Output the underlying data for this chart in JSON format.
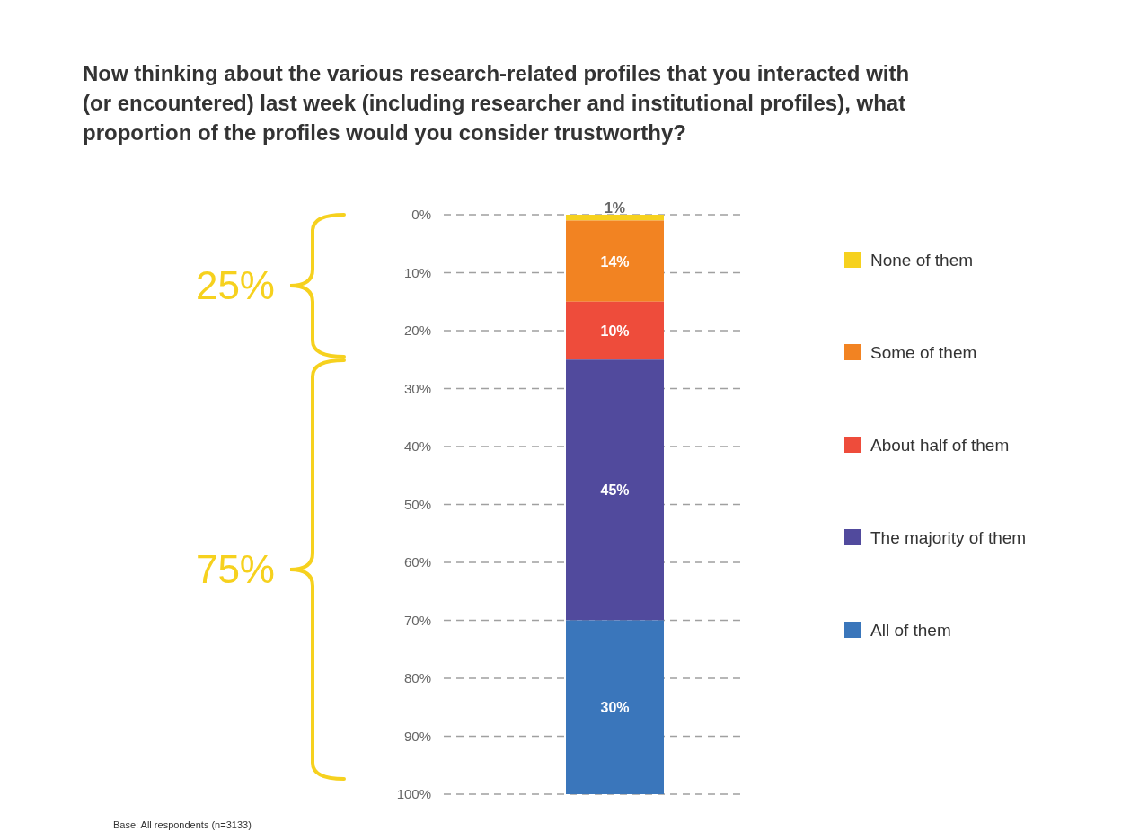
{
  "chart_data": {
    "type": "bar",
    "title": "Now thinking about the various research-related profiles that you interacted with (or encountered) last week (including researcher and institutional profiles), what proportion of the profiles would you consider trustworthy?",
    "categories": [
      null
    ],
    "stacked": true,
    "series": [
      {
        "name": "None of them",
        "color": "#f6d11e",
        "values": [
          1
        ],
        "value_labels": [
          "1%"
        ]
      },
      {
        "name": "Some of them",
        "color": "#f28322",
        "values": [
          14
        ],
        "value_labels": [
          "14%"
        ]
      },
      {
        "name": "About half of them",
        "color": "#ee4c3b",
        "values": [
          10
        ],
        "value_labels": [
          "10%"
        ]
      },
      {
        "name": "The majority of them",
        "color": "#514a9d",
        "values": [
          45
        ],
        "value_labels": [
          "45%"
        ]
      },
      {
        "name": "All of them",
        "color": "#3a76bb",
        "values": [
          30
        ],
        "value_labels": [
          "30%"
        ]
      }
    ],
    "ylim": [
      100,
      0
    ],
    "yticks": [
      {
        "value": 0,
        "label": "0%"
      },
      {
        "value": 10,
        "label": "10%"
      },
      {
        "value": 20,
        "label": "20%"
      },
      {
        "value": 30,
        "label": "30%"
      },
      {
        "value": 40,
        "label": "40%"
      },
      {
        "value": 50,
        "label": "50%"
      },
      {
        "value": 60,
        "label": "60%"
      },
      {
        "value": 70,
        "label": "70%"
      },
      {
        "value": 80,
        "label": "80%"
      },
      {
        "value": 90,
        "label": "90%"
      },
      {
        "value": 100,
        "label": "100%"
      }
    ],
    "grid": "y",
    "legend": "right",
    "annotations": [
      "25%",
      "75%",
      "Base: All respondents (n=3133)"
    ]
  }
}
